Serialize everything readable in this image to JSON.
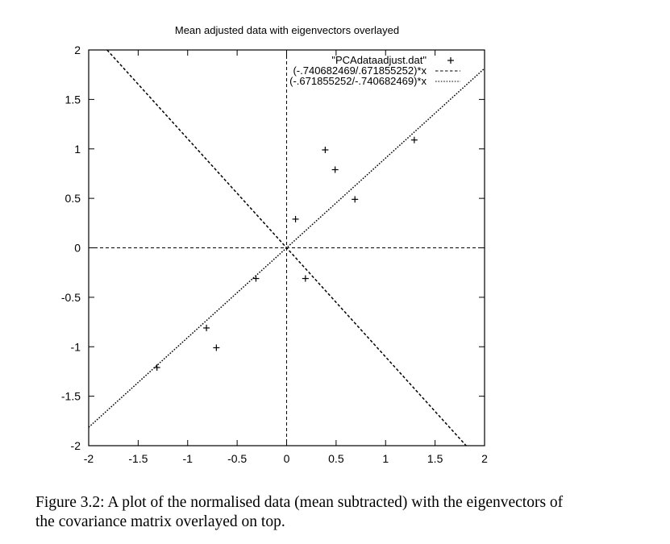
{
  "chart_data": {
    "type": "scatter",
    "title": "Mean adjusted data with eigenvectors overlayed",
    "xlim": [
      -2,
      2
    ],
    "ylim": [
      -2,
      2
    ],
    "x_ticks": [
      -2,
      -1.5,
      -1,
      -0.5,
      0,
      0.5,
      1,
      1.5,
      2
    ],
    "y_ticks": [
      -2,
      -1.5,
      -1,
      -0.5,
      0,
      0.5,
      1,
      1.5,
      2
    ],
    "x_tick_labels": [
      "-2",
      "-1.5",
      "-1",
      "-0.5",
      "0",
      "0.5",
      "1",
      "1.5",
      "2"
    ],
    "y_tick_labels": [
      "-2",
      "-1.5",
      "-1",
      "-0.5",
      "0",
      "0.5",
      "1",
      "1.5",
      "2"
    ],
    "zero_axes": true,
    "legend_position": "top-right",
    "series": [
      {
        "name": "\"PCAdataadjust.dat\"",
        "kind": "points",
        "marker": "+",
        "points": [
          [
            0.69,
            0.49
          ],
          [
            -1.31,
            -1.21
          ],
          [
            0.39,
            0.99
          ],
          [
            0.09,
            0.29
          ],
          [
            1.29,
            1.09
          ],
          [
            0.49,
            0.79
          ],
          [
            0.19,
            -0.31
          ],
          [
            -0.81,
            -0.81
          ],
          [
            -0.31,
            -0.31
          ],
          [
            -0.71,
            -1.01
          ]
        ]
      },
      {
        "name": "(-.740682469/.671855252)*x",
        "kind": "line",
        "dash": "dashed",
        "slope": -1.10244
      },
      {
        "name": "(-.671855252/-.740682469)*x",
        "kind": "line",
        "dash": "dotted",
        "slope": 0.907077
      }
    ]
  },
  "caption": {
    "line1": "Figure 3.2: A plot of the normalised data (mean subtracted) with the eigenvectors of",
    "line2": "the covariance matrix overlayed on top."
  }
}
